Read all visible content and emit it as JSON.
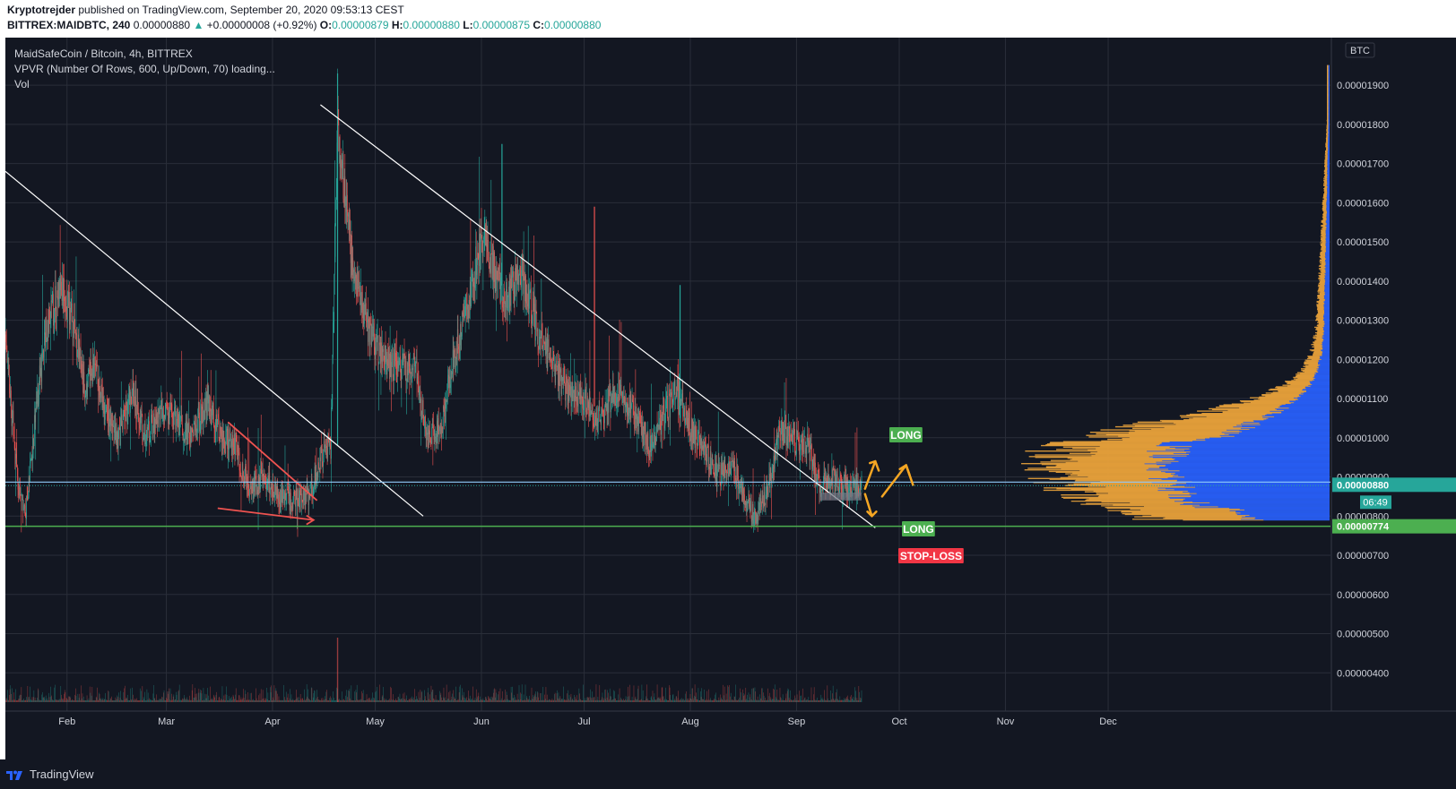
{
  "header": {
    "author": "Kryptotrejder",
    "published": " published on TradingView.com, September 20, 2020 09:53:13 CEST",
    "symbol": "BITTREX:MAIDBTC, 240",
    "last": "0.00000880",
    "arrow": "▲",
    "change": "+0.00000008 (+0.92%)",
    "o_label": "O:",
    "o": "0.00000879",
    "h_label": "H:",
    "h": "0.00000880",
    "l_label": "L:",
    "l": "0.00000875",
    "c_label": "C:",
    "c": "0.00000880"
  },
  "legend": {
    "title": "MaidSafeCoin / Bitcoin, 4h, BITTREX",
    "vpvr": "VPVR (Number Of Rows, 600, Up/Down, 70) loading...",
    "vol": "Vol"
  },
  "footer": {
    "brand": "TradingView"
  },
  "colors": {
    "background": "#131722",
    "grid": "#2a2e39",
    "up": "#26a69a",
    "down": "#ef5350",
    "vp_up": "#2962ff",
    "vp_down": "#e9a23b",
    "annotation": "#f5a623"
  },
  "chart_data": {
    "type": "candlestick",
    "currency": "BTC",
    "x_ticks": [
      "Feb",
      "Mar",
      "Apr",
      "May",
      "Jun",
      "Jul",
      "Aug",
      "Sep",
      "Oct",
      "Nov",
      "Dec"
    ],
    "y_ticks": [
      "0.00001900",
      "0.00001800",
      "0.00001700",
      "0.00001600",
      "0.00001500",
      "0.00001400",
      "0.00001300",
      "0.00001200",
      "0.00001100",
      "0.00001000",
      "0.00000900",
      "0.00000800",
      "0.00000700",
      "0.00000600",
      "0.00000500",
      "0.00000400"
    ],
    "ylim": [
      3.7e-06,
      1.97e-05
    ],
    "last_price": "0.00000880",
    "countdown": "06:49",
    "stop_loss_price": "0.00000774",
    "price_path": [
      [
        "2020-01-14",
        1.25e-05
      ],
      [
        "2020-01-18",
        8.5e-06
      ],
      [
        "2020-01-20",
        8.1e-06
      ],
      [
        "2020-01-23",
        1.08e-05
      ],
      [
        "2020-01-26",
        1.28e-05
      ],
      [
        "2020-01-30",
        1.38e-05
      ],
      [
        "2020-02-03",
        1.3e-05
      ],
      [
        "2020-02-06",
        1.12e-05
      ],
      [
        "2020-02-09",
        1.18e-05
      ],
      [
        "2020-02-12",
        1.06e-05
      ],
      [
        "2020-02-16",
        1e-05
      ],
      [
        "2020-02-20",
        1.12e-05
      ],
      [
        "2020-02-24",
        1e-05
      ],
      [
        "2020-02-29",
        1.07e-05
      ],
      [
        "2020-03-04",
        1.04e-05
      ],
      [
        "2020-03-08",
        1e-05
      ],
      [
        "2020-03-13",
        1.1e-05
      ],
      [
        "2020-03-17",
        1e-05
      ],
      [
        "2020-03-21",
        9.8e-06
      ],
      [
        "2020-03-25",
        8.7e-06
      ],
      [
        "2020-03-30",
        9e-06
      ],
      [
        "2020-04-03",
        8.4e-06
      ],
      [
        "2020-04-08",
        8.4e-06
      ],
      [
        "2020-04-12",
        8.6e-06
      ],
      [
        "2020-04-15",
        9.5e-06
      ],
      [
        "2020-04-18",
        9.8e-06
      ],
      [
        "2020-04-20",
        1.81e-05
      ],
      [
        "2020-04-22",
        1.62e-05
      ],
      [
        "2020-04-25",
        1.4e-05
      ],
      [
        "2020-04-29",
        1.28e-05
      ],
      [
        "2020-05-03",
        1.2e-05
      ],
      [
        "2020-05-08",
        1.18e-05
      ],
      [
        "2020-05-13",
        1.18e-05
      ],
      [
        "2020-05-16",
        1e-05
      ],
      [
        "2020-05-20",
        1.02e-05
      ],
      [
        "2020-05-24",
        1.2e-05
      ],
      [
        "2020-05-29",
        1.38e-05
      ],
      [
        "2020-06-01",
        1.52e-05
      ],
      [
        "2020-06-04",
        1.45e-05
      ],
      [
        "2020-06-08",
        1.35e-05
      ],
      [
        "2020-06-13",
        1.42e-05
      ],
      [
        "2020-06-17",
        1.28e-05
      ],
      [
        "2020-06-21",
        1.2e-05
      ],
      [
        "2020-06-26",
        1.12e-05
      ],
      [
        "2020-07-01",
        1.1e-05
      ],
      [
        "2020-07-05",
        1.05e-05
      ],
      [
        "2020-07-10",
        1.12e-05
      ],
      [
        "2020-07-15",
        1.07e-05
      ],
      [
        "2020-07-20",
        9.8e-06
      ],
      [
        "2020-07-24",
        1.05e-05
      ],
      [
        "2020-07-28",
        1.12e-05
      ],
      [
        "2020-08-01",
        1.02e-05
      ],
      [
        "2020-08-05",
        9.8e-06
      ],
      [
        "2020-08-09",
        9e-06
      ],
      [
        "2020-08-13",
        9.3e-06
      ],
      [
        "2020-08-17",
        8.5e-06
      ],
      [
        "2020-08-20",
        7.9e-06
      ],
      [
        "2020-08-24",
        8.8e-06
      ],
      [
        "2020-08-27",
        1.01e-05
      ],
      [
        "2020-08-31",
        9.9e-06
      ],
      [
        "2020-09-04",
        9.8e-06
      ],
      [
        "2020-09-08",
        8.8e-06
      ],
      [
        "2020-09-12",
        8.9e-06
      ],
      [
        "2020-09-16",
        8.7e-06
      ],
      [
        "2020-09-20",
        8.8e-06
      ]
    ],
    "trendlines": [
      {
        "color": "#ffffff",
        "from": [
          "2020-01-14",
          1.68e-05
        ],
        "to": [
          "2020-05-15",
          8e-06
        ]
      },
      {
        "color": "#ffffff",
        "from": [
          "2020-04-15",
          1.85e-05
        ],
        "to": [
          "2020-09-24",
          7.7e-06
        ]
      },
      {
        "color": "#ef5350",
        "from": [
          "2020-03-19",
          1.04e-05
        ],
        "to": [
          "2020-04-14",
          8.4e-06
        ]
      },
      {
        "color": "#ef5350",
        "from": [
          "2020-03-16",
          8.2e-06
        ],
        "to": [
          "2020-04-13",
          7.9e-06
        ]
      }
    ],
    "annotations": [
      "LONG",
      "LONG",
      "STOP-LOSS"
    ]
  }
}
